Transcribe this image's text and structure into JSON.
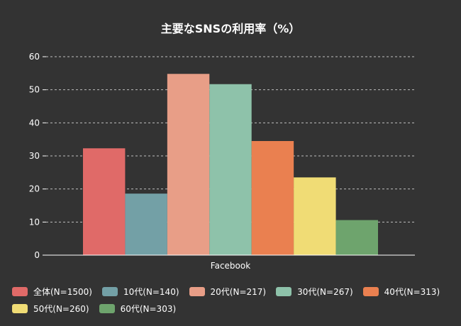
{
  "chart_data": {
    "type": "bar",
    "title": "主要なSNSの利用率（%）",
    "categories": [
      "Facebook"
    ],
    "ylim": [
      0,
      60
    ],
    "yticks": [
      0,
      10,
      20,
      30,
      40,
      50,
      60
    ],
    "grid": true,
    "legend_position": "bottom",
    "series": [
      {
        "name": "全体(N=1500)",
        "color": "#e06a68",
        "values": [
          32.3
        ]
      },
      {
        "name": "10代(N=140)",
        "color": "#73a0a6",
        "values": [
          18.6
        ]
      },
      {
        "name": "20代(N=217)",
        "color": "#e89e87",
        "values": [
          54.8
        ]
      },
      {
        "name": "30代(N=267)",
        "color": "#8ec2aa",
        "values": [
          51.7
        ]
      },
      {
        "name": "40代(N=313)",
        "color": "#ea8050",
        "values": [
          34.5
        ]
      },
      {
        "name": "50代(N=260)",
        "color": "#f0dc75",
        "values": [
          23.5
        ]
      },
      {
        "name": "60代(N=303)",
        "color": "#6ea46d",
        "values": [
          10.6
        ]
      }
    ]
  }
}
